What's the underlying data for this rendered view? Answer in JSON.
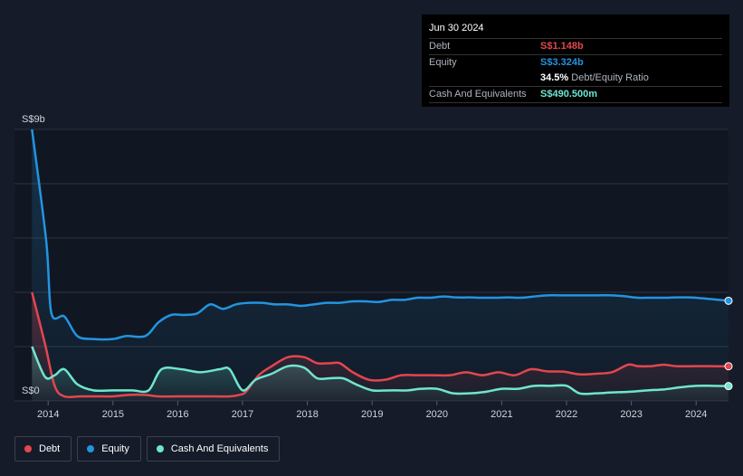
{
  "colors": {
    "debt": "#e2464f",
    "equity": "#2394df",
    "cash": "#6fe6cf",
    "grid": "#2c3342",
    "axis_text": "#d0d4dc"
  },
  "tooltip": {
    "date": "Jun 30 2024",
    "debt_label": "Debt",
    "debt_value": "S$1.148b",
    "equity_label": "Equity",
    "equity_value": "S$3.324b",
    "ratio_value": "34.5%",
    "ratio_label": "Debt/Equity Ratio",
    "cash_label": "Cash And Equivalents",
    "cash_value": "S$490.500m"
  },
  "legend": {
    "debt": "Debt",
    "equity": "Equity",
    "cash": "Cash And Equivalents"
  },
  "chart_data": {
    "type": "line",
    "title": "",
    "y_top_label": "S$9b",
    "y_bottom_label": "S$0",
    "ylim": [
      0,
      9
    ],
    "xlim": [
      2013.48,
      2024.5
    ],
    "x_ticks": [
      2014,
      2015,
      2016,
      2017,
      2018,
      2019,
      2020,
      2021,
      2022,
      2023,
      2024
    ],
    "x_tick_labels": [
      "2014",
      "2015",
      "2016",
      "2017",
      "2018",
      "2019",
      "2020",
      "2021",
      "2022",
      "2023",
      "2024"
    ],
    "series": [
      {
        "name": "Equity",
        "key": "equity",
        "x": [
          2013.75,
          2013.97,
          2014.05,
          2014.25,
          2014.45,
          2014.7,
          2015.0,
          2015.2,
          2015.5,
          2015.7,
          2015.9,
          2016.1,
          2016.3,
          2016.5,
          2016.7,
          2016.9,
          2017.1,
          2017.3,
          2017.5,
          2017.7,
          2017.9,
          2018.1,
          2018.3,
          2018.5,
          2018.7,
          2018.9,
          2019.1,
          2019.3,
          2019.5,
          2019.7,
          2019.9,
          2020.1,
          2020.3,
          2020.5,
          2020.7,
          2020.9,
          2021.1,
          2021.3,
          2021.5,
          2021.7,
          2021.9,
          2022.1,
          2022.3,
          2022.5,
          2022.7,
          2022.9,
          2023.1,
          2023.3,
          2023.5,
          2023.7,
          2023.9,
          2024.1,
          2024.3,
          2024.5
        ],
        "values": [
          9.0,
          5.3,
          2.9,
          2.8,
          2.15,
          2.05,
          2.05,
          2.15,
          2.15,
          2.6,
          2.85,
          2.85,
          2.9,
          3.2,
          3.05,
          3.2,
          3.25,
          3.25,
          3.2,
          3.2,
          3.15,
          3.2,
          3.25,
          3.25,
          3.3,
          3.3,
          3.28,
          3.35,
          3.35,
          3.42,
          3.42,
          3.46,
          3.43,
          3.43,
          3.42,
          3.42,
          3.43,
          3.42,
          3.46,
          3.5,
          3.5,
          3.5,
          3.5,
          3.5,
          3.5,
          3.47,
          3.42,
          3.42,
          3.42,
          3.43,
          3.43,
          3.4,
          3.36,
          3.32
        ]
      },
      {
        "name": "Debt",
        "key": "debt",
        "x": [
          2013.75,
          2013.95,
          2014.1,
          2014.25,
          2014.5,
          2014.75,
          2015.0,
          2015.25,
          2015.5,
          2015.7,
          2016.0,
          2016.4,
          2016.8,
          2016.95,
          2017.05,
          2017.25,
          2017.45,
          2017.7,
          2017.95,
          2018.15,
          2018.35,
          2018.5,
          2018.7,
          2018.95,
          2019.2,
          2019.45,
          2019.7,
          2019.95,
          2020.2,
          2020.45,
          2020.7,
          2020.95,
          2021.2,
          2021.45,
          2021.7,
          2021.95,
          2022.2,
          2022.45,
          2022.7,
          2022.95,
          2023.1,
          2023.3,
          2023.5,
          2023.7,
          2023.95,
          2024.2,
          2024.5
        ],
        "values": [
          3.6,
          1.9,
          0.5,
          0.15,
          0.15,
          0.15,
          0.15,
          0.2,
          0.2,
          0.15,
          0.15,
          0.15,
          0.15,
          0.2,
          0.3,
          0.85,
          1.15,
          1.45,
          1.45,
          1.25,
          1.25,
          1.25,
          0.95,
          0.7,
          0.7,
          0.85,
          0.85,
          0.85,
          0.85,
          0.95,
          0.85,
          0.95,
          0.85,
          1.05,
          0.98,
          0.97,
          0.88,
          0.9,
          0.95,
          1.2,
          1.15,
          1.15,
          1.2,
          1.15,
          1.15,
          1.15,
          1.148
        ]
      },
      {
        "name": "Cash And Equivalents",
        "key": "cash",
        "x": [
          2013.75,
          2013.95,
          2014.1,
          2014.25,
          2014.45,
          2014.7,
          2015.0,
          2015.3,
          2015.55,
          2015.75,
          2016.05,
          2016.35,
          2016.65,
          2016.8,
          2017.0,
          2017.2,
          2017.45,
          2017.7,
          2017.95,
          2018.15,
          2018.35,
          2018.55,
          2018.75,
          2019.0,
          2019.3,
          2019.55,
          2019.75,
          2020.0,
          2020.25,
          2020.5,
          2020.75,
          2021.0,
          2021.25,
          2021.5,
          2021.75,
          2022.0,
          2022.2,
          2022.45,
          2022.7,
          2022.95,
          2023.25,
          2023.5,
          2023.75,
          2024.0,
          2024.25,
          2024.5
        ],
        "values": [
          1.8,
          0.8,
          0.85,
          1.05,
          0.55,
          0.35,
          0.35,
          0.35,
          0.35,
          1.05,
          1.05,
          0.95,
          1.05,
          1.05,
          0.35,
          0.7,
          0.9,
          1.15,
          1.1,
          0.75,
          0.75,
          0.75,
          0.55,
          0.35,
          0.35,
          0.35,
          0.4,
          0.4,
          0.25,
          0.25,
          0.3,
          0.4,
          0.4,
          0.5,
          0.5,
          0.5,
          0.25,
          0.25,
          0.28,
          0.3,
          0.35,
          0.38,
          0.45,
          0.5,
          0.5,
          0.49
        ]
      }
    ]
  }
}
